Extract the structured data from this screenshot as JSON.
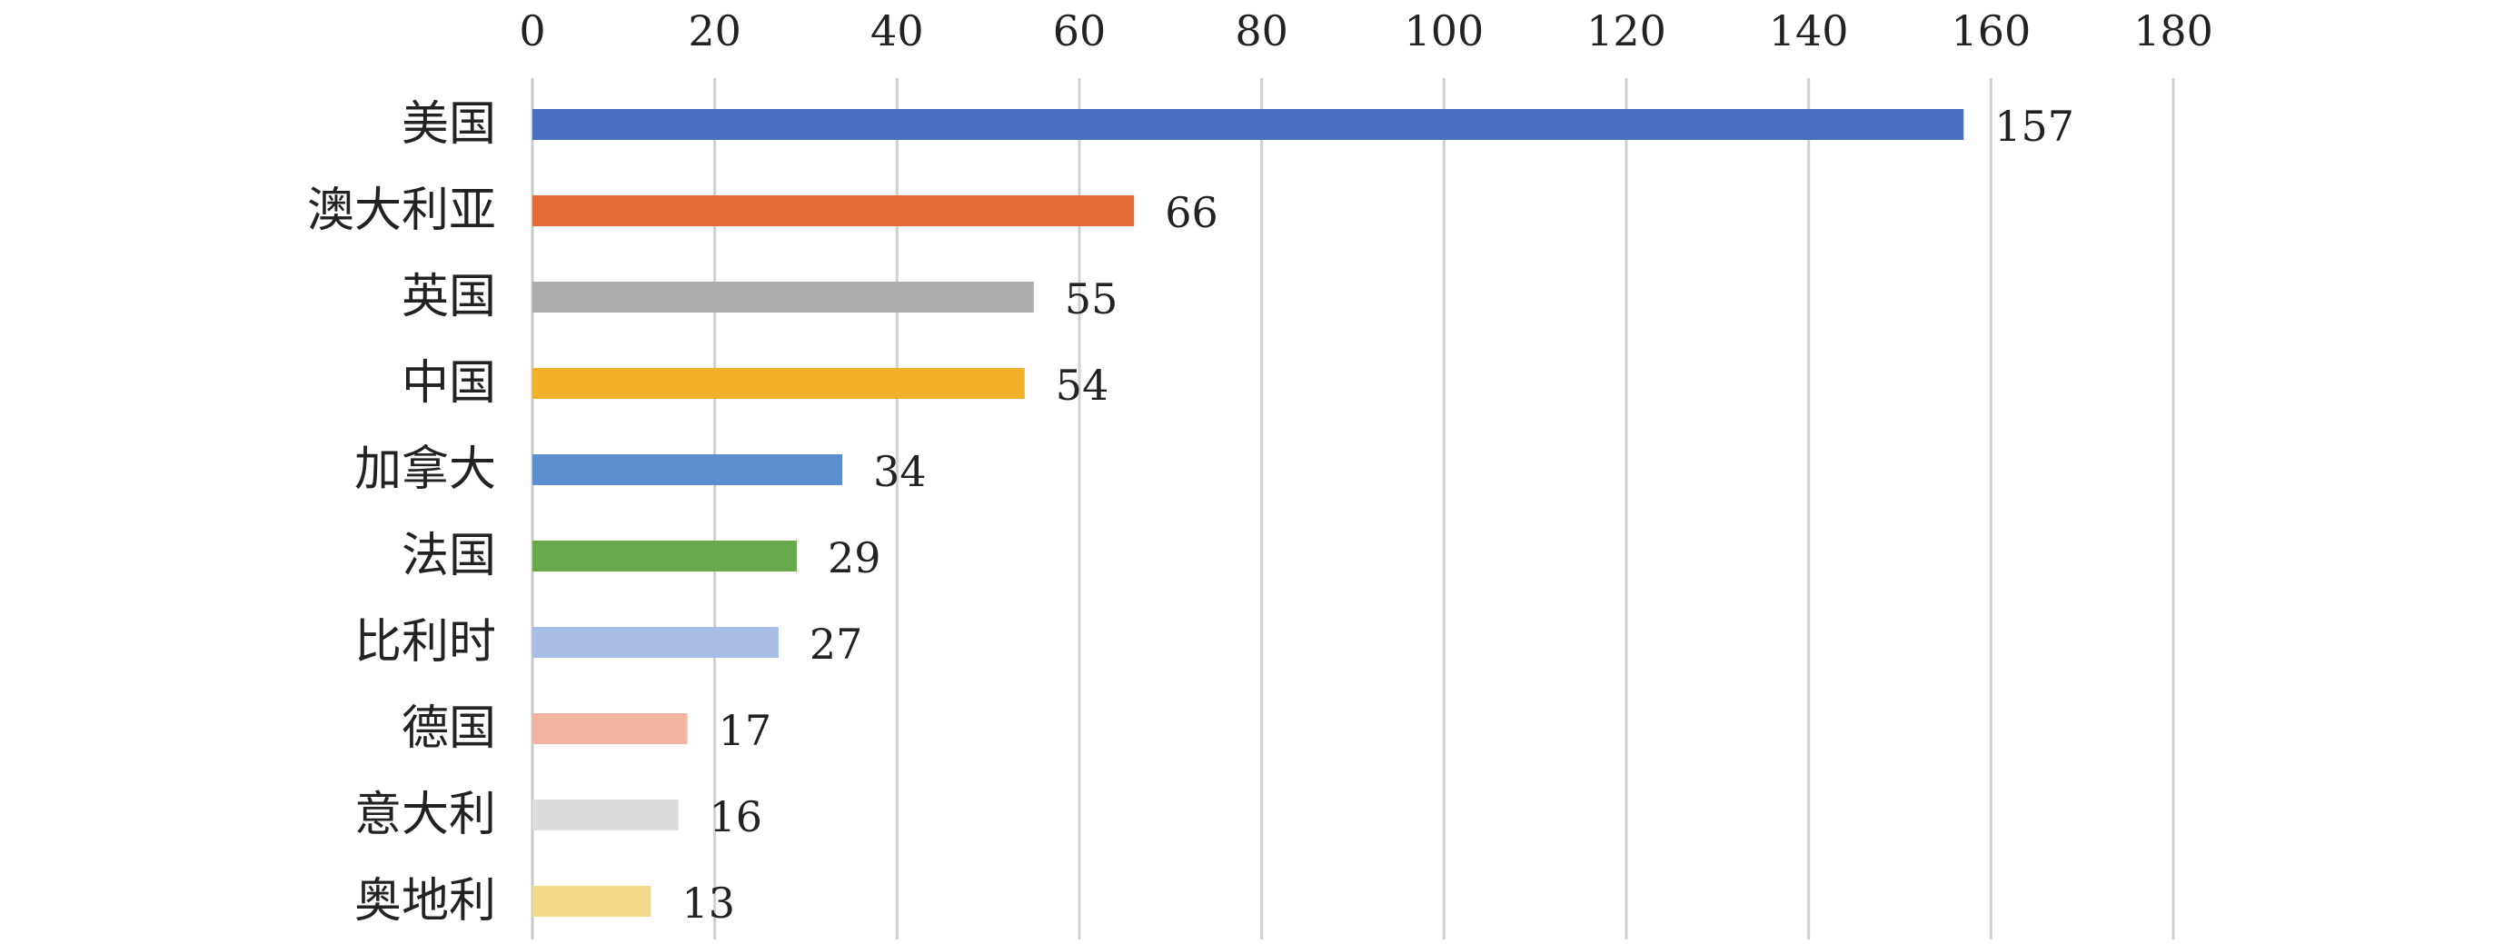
{
  "chart_data": {
    "type": "bar",
    "orientation": "horizontal",
    "categories": [
      "美国",
      "澳大利亚",
      "英国",
      "中国",
      "加拿大",
      "法国",
      "比利时",
      "德国",
      "意大利",
      "奥地利"
    ],
    "values": [
      157,
      66,
      55,
      54,
      34,
      29,
      27,
      17,
      16,
      13
    ],
    "value_labels": [
      "157",
      "66",
      "55",
      "54",
      "34",
      "29",
      "27",
      "17",
      "16",
      "13"
    ],
    "colors": [
      "#4a6ebf",
      "#e46a35",
      "#adadad",
      "#f2b02b",
      "#5b8fcf",
      "#66a84a",
      "#a7bde3",
      "#f2b6a0",
      "#dcdcdc",
      "#f5d98a"
    ],
    "xlim": [
      0,
      180
    ],
    "xticks": [
      0,
      20,
      40,
      60,
      80,
      100,
      120,
      140,
      160,
      180
    ],
    "x_axis_position": "top",
    "grid": true,
    "legend": "none",
    "title": "",
    "xlabel": "",
    "ylabel": ""
  }
}
